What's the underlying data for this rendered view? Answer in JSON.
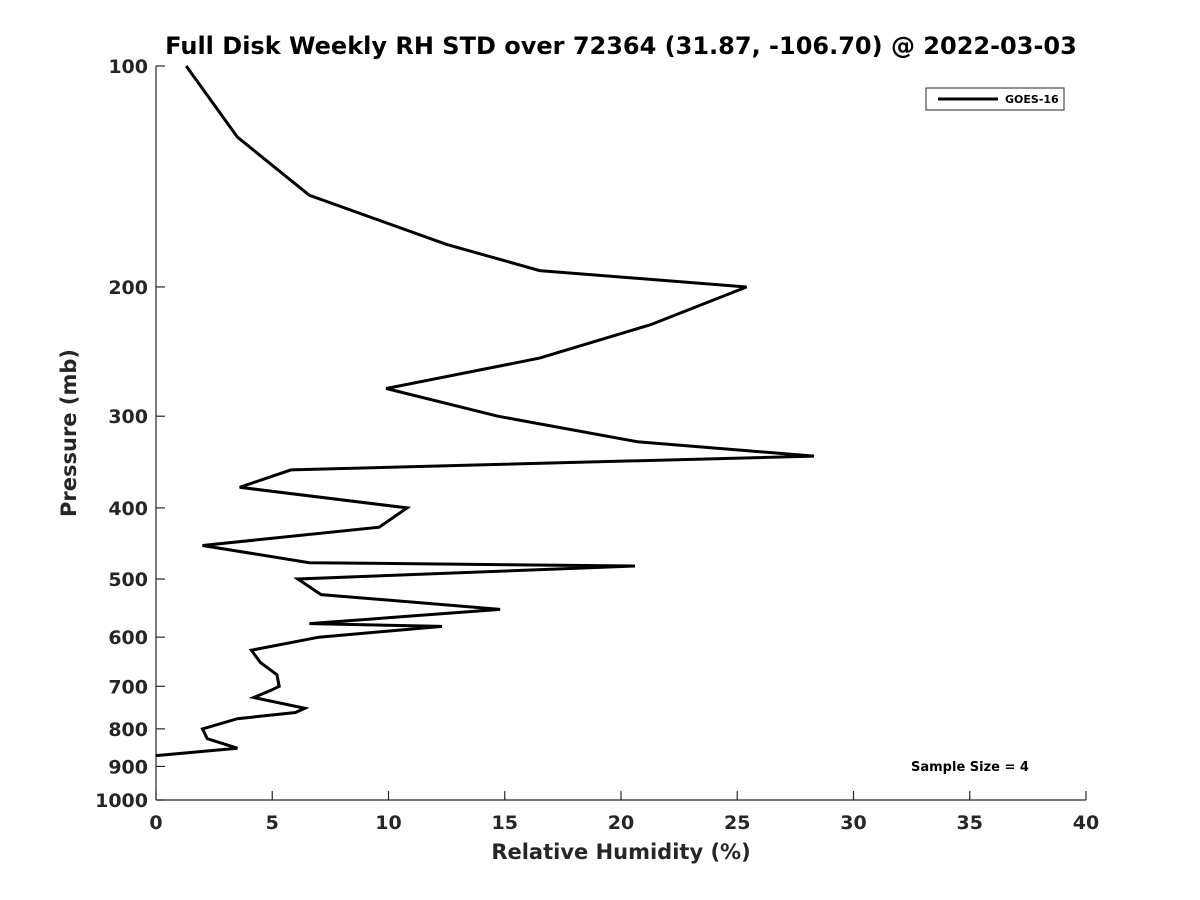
{
  "chart_data": {
    "type": "line",
    "title": "Full Disk Weekly RH STD over 72364 (31.87, -106.70) @ 2022-03-03",
    "xlabel": "Relative Humidity (%)",
    "ylabel": "Pressure (mb)",
    "xlim": [
      0,
      40
    ],
    "ylim": [
      100,
      1000
    ],
    "y_scale": "log",
    "y_reversed": true,
    "x_ticks": [
      "0",
      "5",
      "10",
      "15",
      "20",
      "25",
      "30",
      "35",
      "40"
    ],
    "y_ticks": [
      "100",
      "200",
      "300",
      "400",
      "500",
      "600",
      "700",
      "800",
      "900",
      "1000"
    ],
    "grid": false,
    "legend_position": "top-right",
    "annotation": "Sample Size = 4",
    "series": [
      {
        "name": "GOES-16",
        "color": "#000000",
        "points": [
          [
            1.3,
            100
          ],
          [
            3.5,
            125
          ],
          [
            6.6,
            150
          ],
          [
            12.5,
            175
          ],
          [
            16.5,
            190
          ],
          [
            25.4,
            200
          ],
          [
            21.3,
            225
          ],
          [
            16.5,
            250
          ],
          [
            9.9,
            275
          ],
          [
            14.7,
            300
          ],
          [
            20.7,
            325
          ],
          [
            28.3,
            340
          ],
          [
            5.8,
            355
          ],
          [
            3.6,
            375
          ],
          [
            10.8,
            400
          ],
          [
            9.6,
            425
          ],
          [
            2.0,
            450
          ],
          [
            6.6,
            475
          ],
          [
            20.6,
            480
          ],
          [
            6.1,
            500
          ],
          [
            7.1,
            525
          ],
          [
            14.8,
            550
          ],
          [
            6.6,
            575
          ],
          [
            12.3,
            580
          ],
          [
            7.0,
            600
          ],
          [
            4.1,
            625
          ],
          [
            4.5,
            650
          ],
          [
            5.2,
            675
          ],
          [
            5.3,
            700
          ],
          [
            4.9,
            710
          ],
          [
            4.2,
            725
          ],
          [
            6.4,
            750
          ],
          [
            6.0,
            760
          ],
          [
            3.5,
            775
          ],
          [
            2.0,
            800
          ],
          [
            2.2,
            825
          ],
          [
            3.5,
            850
          ],
          [
            0.0,
            870
          ]
        ]
      }
    ]
  }
}
